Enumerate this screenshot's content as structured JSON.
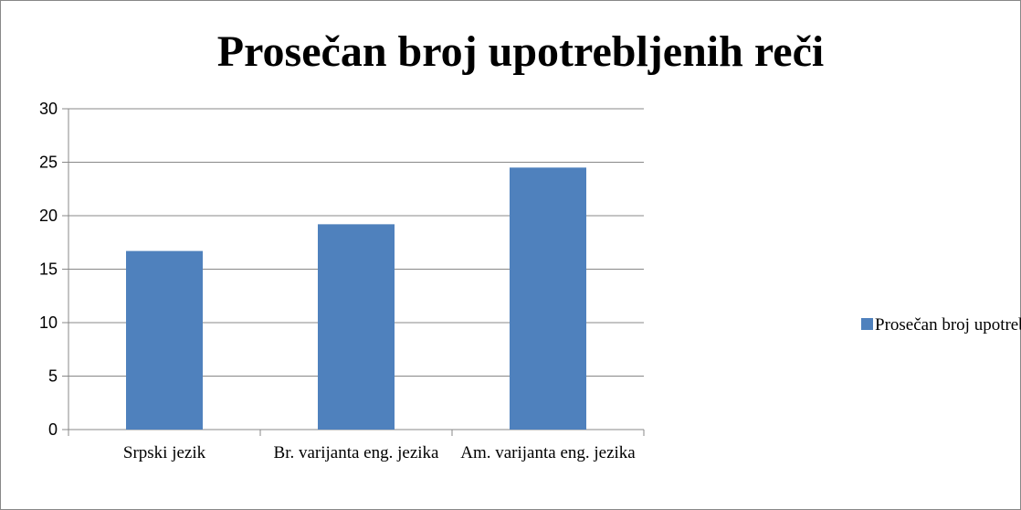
{
  "chart_data": {
    "type": "bar",
    "title": "Prosečan broj upotrebljenih reči",
    "categories": [
      "Srpski jezik",
      "Br. varijanta eng. jezika",
      "Am. varijanta eng. jezika"
    ],
    "series": [
      {
        "name": "Prosečan broj upotrebljenih reči",
        "color": "#4f81bd",
        "values": [
          16.7,
          19.2,
          24.5
        ]
      }
    ],
    "ylim": [
      0,
      30
    ],
    "yticks": [
      0,
      5,
      10,
      15,
      20,
      25,
      30
    ],
    "grid": true,
    "legend": "right"
  }
}
